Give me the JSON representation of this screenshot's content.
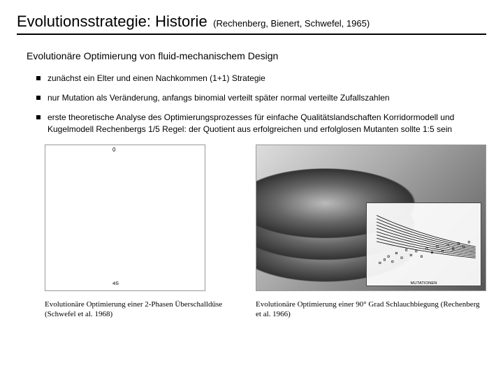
{
  "title": {
    "main": "Evolutionsstrategie: Historie",
    "sub": "(Rechenberg, Bienert, Schwefel, 1965)"
  },
  "subtitle": "Evolutionäre Optimierung von fluid-mechanischem Design",
  "bullets": [
    "zunächst ein Elter und einen Nachkommen (1+1) Strategie",
    "nur Mutation als Veränderung, anfangs binomial verteilt später normal verteilte Zufallszahlen",
    "erste theoretische Analyse des Optimierungsprozesses für einfache Qualitätslandschaften Korridormodell und Kugelmodell\nRechenbergs 1/5 Regel: der Quotient aus erfolgreichen und erfolglosen Mutanten sollte 1:5 sein"
  ],
  "figures": {
    "left": {
      "caption": "Evolutionäre Optimierung einer 2-Phasen\nÜberschalldüse (Schwefel et al. 1968)",
      "row_labels": [
        "0",
        "",
        "",
        "",
        "",
        "",
        "",
        "",
        "",
        "",
        "",
        "",
        "",
        "",
        "",
        "",
        "45"
      ],
      "row_count": 17
    },
    "right": {
      "caption": "Evolutionäre Optimierung einer 90° Grad\nSchlauchbiegung (Rechenberg et al. 1966)",
      "chart": {
        "type": "scatter-with-curves",
        "xlabel": "MUTATIONEN",
        "background": "#ffffff",
        "border": "#444444",
        "curve_color": "#000000",
        "point_color": "#000000",
        "xlim": [
          0,
          1500
        ],
        "ylim": [
          0,
          100
        ],
        "curves_y_offsets": [
          85,
          80,
          75,
          70,
          65,
          60,
          55,
          50,
          45
        ],
        "scatter": [
          [
            50,
            20
          ],
          [
            120,
            25
          ],
          [
            180,
            30
          ],
          [
            240,
            22
          ],
          [
            300,
            35
          ],
          [
            380,
            28
          ],
          [
            450,
            40
          ],
          [
            520,
            32
          ],
          [
            600,
            38
          ],
          [
            680,
            30
          ],
          [
            760,
            42
          ],
          [
            840,
            36
          ],
          [
            920,
            45
          ],
          [
            1000,
            38
          ],
          [
            1080,
            48
          ],
          [
            1160,
            42
          ],
          [
            1240,
            50
          ],
          [
            1320,
            45
          ],
          [
            1400,
            52
          ]
        ]
      }
    }
  },
  "colors": {
    "text": "#000000",
    "background": "#ffffff",
    "rule": "#000000"
  }
}
